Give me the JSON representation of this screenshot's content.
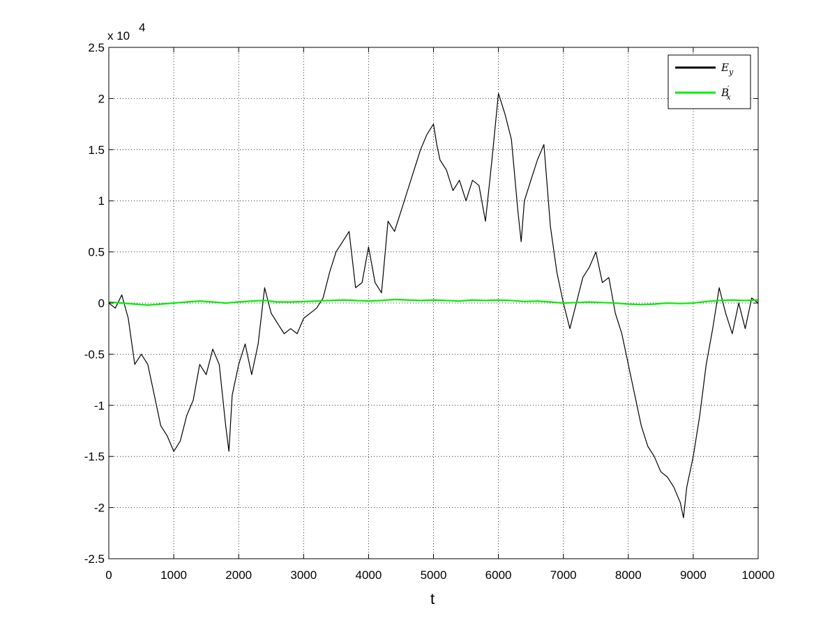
{
  "chart_data": {
    "type": "line",
    "title": "",
    "xlabel": "t",
    "ylabel": "",
    "xlim": [
      0,
      10000
    ],
    "ylim": [
      -25000,
      25000
    ],
    "x_ticks": [
      0,
      1000,
      2000,
      3000,
      4000,
      5000,
      6000,
      7000,
      8000,
      9000,
      10000
    ],
    "x_tick_labels": [
      "0",
      "1000",
      "2000",
      "3000",
      "4000",
      "5000",
      "6000",
      "7000",
      "8000",
      "9000",
      "10000"
    ],
    "y_ticks": [
      -25000,
      -20000,
      -15000,
      -10000,
      -5000,
      0,
      5000,
      10000,
      15000,
      20000,
      25000
    ],
    "y_tick_labels": [
      "-2.5",
      "-2",
      "-1.5",
      "-1",
      "-0.5",
      "0",
      "0.5",
      "1",
      "1.5",
      "2",
      "2.5"
    ],
    "y_exponent_label": "x 10",
    "y_exponent_power": "4",
    "grid": true,
    "grid_style": "dotted",
    "legend_position": "top-right",
    "series": [
      {
        "name": "E_y",
        "legend_main": "E",
        "legend_sub": "y",
        "legend_sup": "",
        "color": "#000000",
        "x": [
          0,
          100,
          200,
          300,
          400,
          500,
          600,
          700,
          800,
          900,
          1000,
          1100,
          1200,
          1300,
          1400,
          1500,
          1600,
          1700,
          1800,
          1850,
          1900,
          2000,
          2100,
          2200,
          2300,
          2400,
          2500,
          2600,
          2700,
          2800,
          2900,
          3000,
          3100,
          3200,
          3300,
          3400,
          3500,
          3600,
          3700,
          3800,
          3900,
          4000,
          4100,
          4200,
          4300,
          4400,
          4500,
          4600,
          4700,
          4800,
          4900,
          5000,
          5050,
          5100,
          5200,
          5300,
          5400,
          5500,
          5600,
          5700,
          5800,
          5900,
          6000,
          6100,
          6200,
          6300,
          6350,
          6400,
          6500,
          6600,
          6700,
          6800,
          6900,
          7000,
          7100,
          7200,
          7300,
          7400,
          7500,
          7600,
          7700,
          7800,
          7900,
          8000,
          8100,
          8200,
          8300,
          8400,
          8500,
          8600,
          8700,
          8800,
          8850,
          8900,
          9000,
          9100,
          9200,
          9300,
          9400,
          9500,
          9600,
          9700,
          9800,
          9900,
          10000
        ],
        "values": [
          0,
          -500,
          800,
          -1500,
          -6000,
          -5000,
          -6000,
          -9000,
          -12000,
          -13000,
          -14500,
          -13500,
          -11000,
          -9500,
          -6000,
          -7000,
          -4500,
          -6000,
          -12000,
          -14500,
          -9000,
          -6000,
          -4000,
          -7000,
          -4000,
          1500,
          -1000,
          -2000,
          -3000,
          -2500,
          -3000,
          -1500,
          -1000,
          -500,
          500,
          3000,
          5000,
          6000,
          7000,
          1500,
          2000,
          5500,
          2000,
          1000,
          8000,
          7000,
          9000,
          11000,
          13000,
          15000,
          16500,
          17500,
          15500,
          14000,
          13000,
          11000,
          12000,
          10000,
          12000,
          11500,
          8000,
          14000,
          20500,
          18500,
          16000,
          9000,
          6000,
          10000,
          12000,
          14000,
          15500,
          7500,
          3000,
          0,
          -2500,
          0,
          2500,
          3500,
          5000,
          2000,
          2500,
          -1000,
          -3000,
          -6000,
          -9000,
          -12000,
          -14000,
          -15000,
          -16500,
          -17000,
          -18000,
          -19500,
          -21000,
          -18000,
          -15000,
          -11000,
          -6000,
          -2500,
          1500,
          -1000,
          -3000,
          0,
          -2500,
          500,
          0
        ]
      },
      {
        "name": "B'_x",
        "legend_main": "B",
        "legend_sub": "x",
        "legend_sup": "′",
        "color": "#00ee00",
        "x": [
          0,
          200,
          400,
          600,
          800,
          1000,
          1200,
          1400,
          1600,
          1800,
          2000,
          2200,
          2400,
          2600,
          2800,
          3000,
          3200,
          3400,
          3600,
          3800,
          4000,
          4200,
          4400,
          4600,
          4800,
          5000,
          5200,
          5400,
          5600,
          5800,
          6000,
          6200,
          6400,
          6600,
          6800,
          7000,
          7200,
          7400,
          7600,
          7800,
          8000,
          8200,
          8400,
          8600,
          8800,
          9000,
          9200,
          9400,
          9600,
          9800,
          10000
        ],
        "values": [
          100,
          0,
          -100,
          -200,
          -100,
          0,
          100,
          200,
          100,
          0,
          100,
          200,
          250,
          100,
          100,
          150,
          200,
          250,
          300,
          250,
          200,
          250,
          350,
          300,
          250,
          300,
          250,
          200,
          300,
          250,
          300,
          250,
          150,
          200,
          100,
          0,
          50,
          100,
          50,
          0,
          -100,
          -150,
          -100,
          0,
          -50,
          0,
          150,
          250,
          300,
          250,
          300
        ]
      }
    ]
  }
}
